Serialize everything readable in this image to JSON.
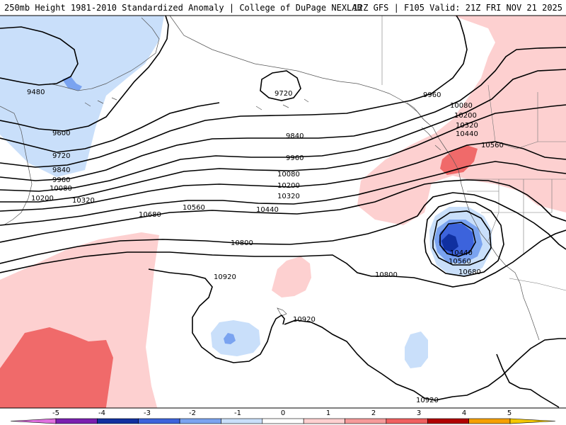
{
  "header": {
    "left_title": "250mb Height 1981-2010 Standardized Anomaly | College of DuPage NEXLAB",
    "right_title": "12Z GFS | F105 Valid: 21Z FRI NOV 21 2025"
  },
  "contour_labels": {
    "c9480": "9480",
    "c9600": "9600",
    "c9720a": "9720",
    "c9720b": "9720",
    "c9840a": "9840",
    "c9840b": "9840",
    "c9960a": "9960",
    "c9960b": "9960",
    "c9960c": "9960",
    "c10080a": "10080",
    "c10080b": "10080",
    "c10080c": "10080",
    "c10200a": "10200",
    "c10200b": "10200",
    "c10200c": "10200",
    "c10320a": "10320",
    "c10320b": "10320",
    "c10320c": "10320",
    "c10440a": "10440",
    "c10440b": "10440",
    "c10440c": "10440",
    "c10560a": "10560",
    "c10560b": "10560",
    "c10560c": "10560",
    "c10680a": "10680",
    "c10680b": "10680",
    "c10800a": "10800",
    "c10800b": "10800",
    "c10920a": "10920",
    "c10920b": "10920",
    "c10920c": "10920"
  },
  "colorbar": {
    "ticks": [
      "-5",
      "-4",
      "-3",
      "-2",
      "-1",
      "0",
      "1",
      "2",
      "3",
      "4",
      "5"
    ],
    "colors": [
      "#e070e0",
      "#7a1fb0",
      "#1030a0",
      "#3c63dc",
      "#7aa3f0",
      "#c9dffa",
      "#ffffff",
      "#ffd0d0",
      "#f59a9a",
      "#f06060",
      "#b00000",
      "#f5a000",
      "#f5c800"
    ]
  },
  "shading": {
    "neg1": "#c9dffa",
    "neg2": "#7aa3f0",
    "neg3": "#3c63dc",
    "neg4": "#1030a0",
    "pos1": "#fdd0d0",
    "pos2": "#f06a6a"
  }
}
